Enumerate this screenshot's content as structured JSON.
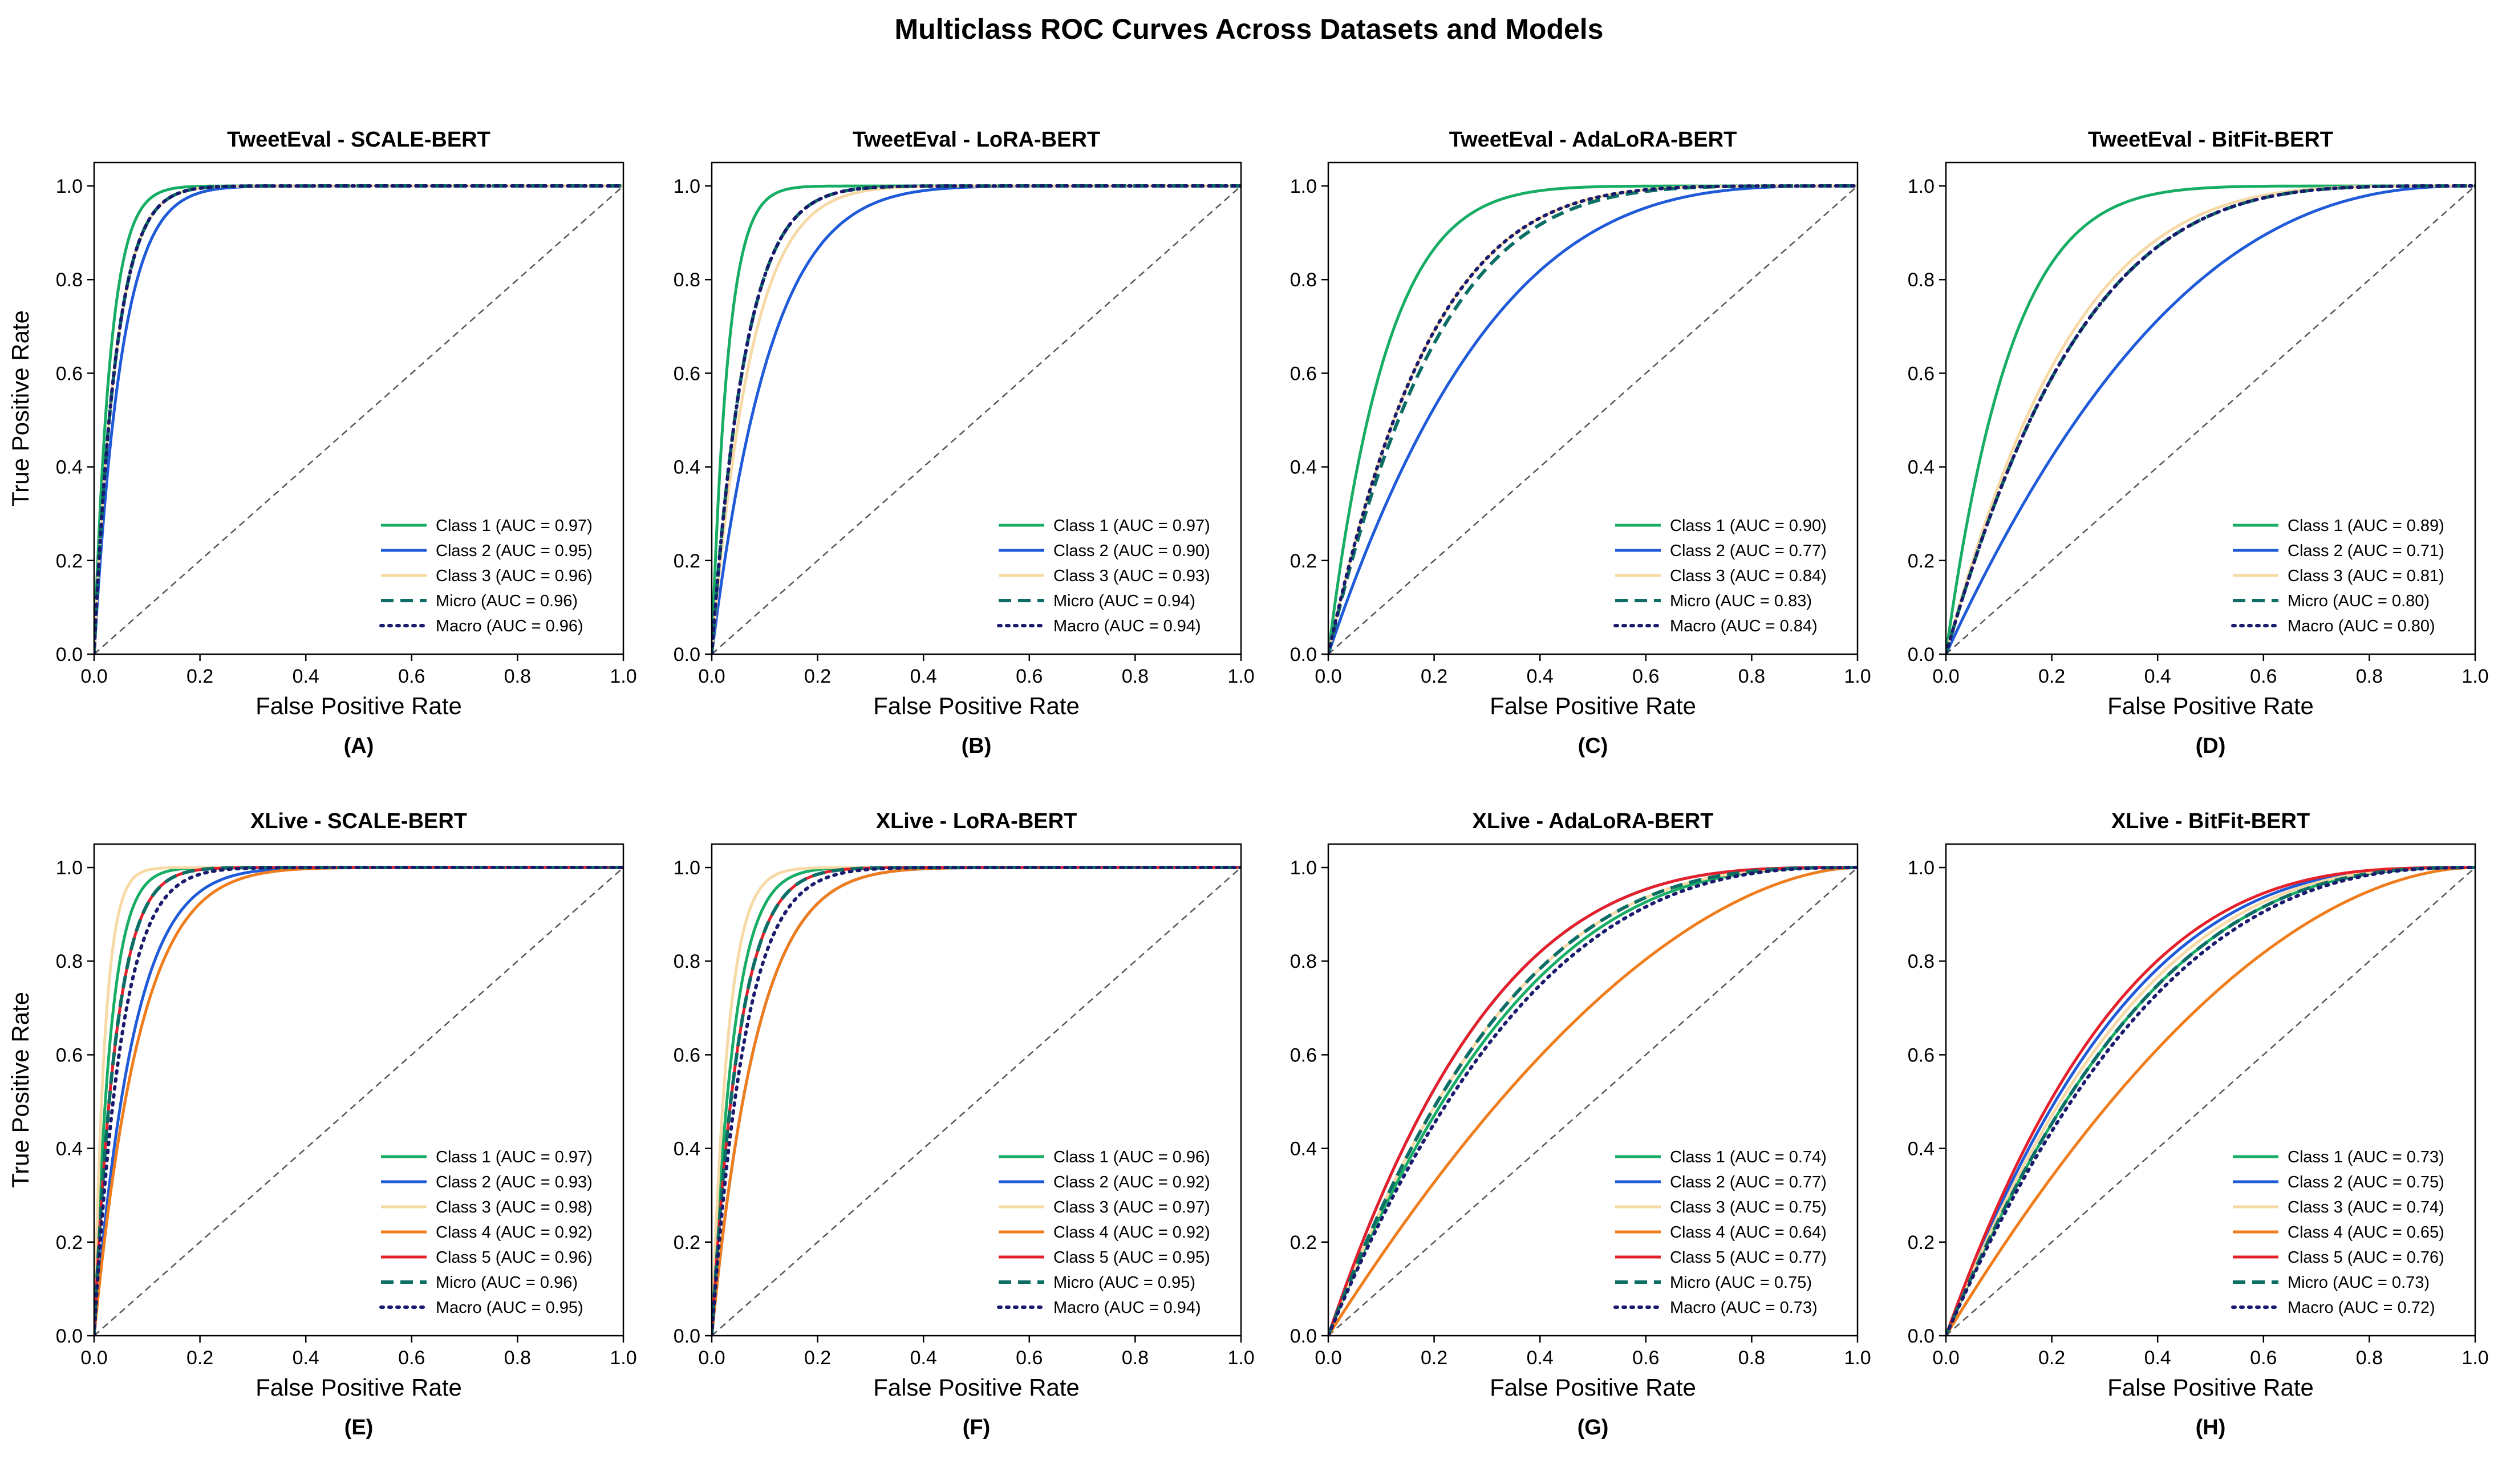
{
  "figure": {
    "title": "Multiclass ROC Curves Across Datasets and Models"
  },
  "colors": {
    "Class 1": "#18ad64",
    "Class 2": "#1f5ad8",
    "Class 3": "#f7d9a6",
    "Class 4": "#f07d1c",
    "Class 5": "#e4202a",
    "Micro": "#0c6e64",
    "Macro": "#1a1a6e",
    "diagonal": "#555555"
  },
  "chart_data": [
    {
      "type": "line",
      "panel_label": "(A)",
      "title": "TweetEval - SCALE-BERT",
      "xlabel": "False Positive Rate",
      "ylabel": "True Positive Rate",
      "xlim": [
        0,
        1
      ],
      "ylim": [
        0,
        1.05
      ],
      "xticks": [
        "0.0",
        "0.2",
        "0.4",
        "0.6",
        "0.8",
        "1.0"
      ],
      "yticks": [
        "0.0",
        "0.2",
        "0.4",
        "0.6",
        "0.8",
        "1.0"
      ],
      "legend_position": "lower-right",
      "grid": false,
      "series": [
        {
          "name": "Class 1",
          "legend": "Class 1 (AUC = 0.97)",
          "auc": 0.97,
          "style": "solid"
        },
        {
          "name": "Class 2",
          "legend": "Class 2 (AUC = 0.95)",
          "auc": 0.95,
          "style": "solid"
        },
        {
          "name": "Class 3",
          "legend": "Class 3 (AUC = 0.96)",
          "auc": 0.96,
          "style": "solid"
        },
        {
          "name": "Micro",
          "legend": "Micro (AUC = 0.96)",
          "auc": 0.96,
          "style": "dashed"
        },
        {
          "name": "Macro",
          "legend": "Macro (AUC = 0.96)",
          "auc": 0.96,
          "style": "dotted"
        }
      ]
    },
    {
      "type": "line",
      "panel_label": "(B)",
      "title": "TweetEval - LoRA-BERT",
      "xlabel": "False Positive Rate",
      "ylabel": "",
      "xlim": [
        0,
        1
      ],
      "ylim": [
        0,
        1.05
      ],
      "xticks": [
        "0.0",
        "0.2",
        "0.4",
        "0.6",
        "0.8",
        "1.0"
      ],
      "yticks": [
        "0.0",
        "0.2",
        "0.4",
        "0.6",
        "0.8",
        "1.0"
      ],
      "legend_position": "lower-right",
      "grid": false,
      "series": [
        {
          "name": "Class 1",
          "legend": "Class 1 (AUC = 0.97)",
          "auc": 0.97,
          "style": "solid"
        },
        {
          "name": "Class 2",
          "legend": "Class 2 (AUC = 0.90)",
          "auc": 0.9,
          "style": "solid"
        },
        {
          "name": "Class 3",
          "legend": "Class 3 (AUC = 0.93)",
          "auc": 0.93,
          "style": "solid"
        },
        {
          "name": "Micro",
          "legend": "Micro (AUC = 0.94)",
          "auc": 0.94,
          "style": "dashed"
        },
        {
          "name": "Macro",
          "legend": "Macro (AUC = 0.94)",
          "auc": 0.94,
          "style": "dotted"
        }
      ]
    },
    {
      "type": "line",
      "panel_label": "(C)",
      "title": "TweetEval - AdaLoRA-BERT",
      "xlabel": "False Positive Rate",
      "ylabel": "",
      "xlim": [
        0,
        1
      ],
      "ylim": [
        0,
        1.05
      ],
      "xticks": [
        "0.0",
        "0.2",
        "0.4",
        "0.6",
        "0.8",
        "1.0"
      ],
      "yticks": [
        "0.0",
        "0.2",
        "0.4",
        "0.6",
        "0.8",
        "1.0"
      ],
      "legend_position": "lower-right",
      "grid": false,
      "series": [
        {
          "name": "Class 1",
          "legend": "Class 1 (AUC = 0.90)",
          "auc": 0.9,
          "style": "solid"
        },
        {
          "name": "Class 2",
          "legend": "Class 2 (AUC = 0.77)",
          "auc": 0.77,
          "style": "solid"
        },
        {
          "name": "Class 3",
          "legend": "Class 3 (AUC = 0.84)",
          "auc": 0.84,
          "style": "solid"
        },
        {
          "name": "Micro",
          "legend": "Micro (AUC = 0.83)",
          "auc": 0.83,
          "style": "dashed"
        },
        {
          "name": "Macro",
          "legend": "Macro (AUC = 0.84)",
          "auc": 0.84,
          "style": "dotted"
        }
      ]
    },
    {
      "type": "line",
      "panel_label": "(D)",
      "title": "TweetEval - BitFit-BERT",
      "xlabel": "False Positive Rate",
      "ylabel": "",
      "xlim": [
        0,
        1
      ],
      "ylim": [
        0,
        1.05
      ],
      "xticks": [
        "0.0",
        "0.2",
        "0.4",
        "0.6",
        "0.8",
        "1.0"
      ],
      "yticks": [
        "0.0",
        "0.2",
        "0.4",
        "0.6",
        "0.8",
        "1.0"
      ],
      "legend_position": "lower-right",
      "grid": false,
      "series": [
        {
          "name": "Class 1",
          "legend": "Class 1 (AUC = 0.89)",
          "auc": 0.89,
          "style": "solid"
        },
        {
          "name": "Class 2",
          "legend": "Class 2 (AUC = 0.71)",
          "auc": 0.71,
          "style": "solid"
        },
        {
          "name": "Class 3",
          "legend": "Class 3 (AUC = 0.81)",
          "auc": 0.81,
          "style": "solid"
        },
        {
          "name": "Micro",
          "legend": "Micro (AUC = 0.80)",
          "auc": 0.8,
          "style": "dashed"
        },
        {
          "name": "Macro",
          "legend": "Macro (AUC = 0.80)",
          "auc": 0.8,
          "style": "dotted"
        }
      ]
    },
    {
      "type": "line",
      "panel_label": "(E)",
      "title": "XLive - SCALE-BERT",
      "xlabel": "False Positive Rate",
      "ylabel": "True Positive Rate",
      "xlim": [
        0,
        1
      ],
      "ylim": [
        0,
        1.05
      ],
      "xticks": [
        "0.0",
        "0.2",
        "0.4",
        "0.6",
        "0.8",
        "1.0"
      ],
      "yticks": [
        "0.0",
        "0.2",
        "0.4",
        "0.6",
        "0.8",
        "1.0"
      ],
      "legend_position": "lower-right",
      "grid": false,
      "series": [
        {
          "name": "Class 1",
          "legend": "Class 1 (AUC = 0.97)",
          "auc": 0.97,
          "style": "solid"
        },
        {
          "name": "Class 2",
          "legend": "Class 2 (AUC = 0.93)",
          "auc": 0.93,
          "style": "solid"
        },
        {
          "name": "Class 3",
          "legend": "Class 3 (AUC = 0.98)",
          "auc": 0.98,
          "style": "solid"
        },
        {
          "name": "Class 4",
          "legend": "Class 4 (AUC = 0.92)",
          "auc": 0.92,
          "style": "solid"
        },
        {
          "name": "Class 5",
          "legend": "Class 5 (AUC = 0.96)",
          "auc": 0.96,
          "style": "solid"
        },
        {
          "name": "Micro",
          "legend": "Micro (AUC = 0.96)",
          "auc": 0.96,
          "style": "dashed"
        },
        {
          "name": "Macro",
          "legend": "Macro (AUC = 0.95)",
          "auc": 0.95,
          "style": "dotted"
        }
      ]
    },
    {
      "type": "line",
      "panel_label": "(F)",
      "title": "XLive - LoRA-BERT",
      "xlabel": "False Positive Rate",
      "ylabel": "",
      "xlim": [
        0,
        1
      ],
      "ylim": [
        0,
        1.05
      ],
      "xticks": [
        "0.0",
        "0.2",
        "0.4",
        "0.6",
        "0.8",
        "1.0"
      ],
      "yticks": [
        "0.0",
        "0.2",
        "0.4",
        "0.6",
        "0.8",
        "1.0"
      ],
      "legend_position": "lower-right",
      "grid": false,
      "series": [
        {
          "name": "Class 1",
          "legend": "Class 1 (AUC = 0.96)",
          "auc": 0.96,
          "style": "solid"
        },
        {
          "name": "Class 2",
          "legend": "Class 2 (AUC = 0.92)",
          "auc": 0.92,
          "style": "solid"
        },
        {
          "name": "Class 3",
          "legend": "Class 3 (AUC = 0.97)",
          "auc": 0.97,
          "style": "solid"
        },
        {
          "name": "Class 4",
          "legend": "Class 4 (AUC = 0.92)",
          "auc": 0.92,
          "style": "solid"
        },
        {
          "name": "Class 5",
          "legend": "Class 5 (AUC = 0.95)",
          "auc": 0.95,
          "style": "solid"
        },
        {
          "name": "Micro",
          "legend": "Micro (AUC = 0.95)",
          "auc": 0.95,
          "style": "dashed"
        },
        {
          "name": "Macro",
          "legend": "Macro (AUC = 0.94)",
          "auc": 0.94,
          "style": "dotted"
        }
      ]
    },
    {
      "type": "line",
      "panel_label": "(G)",
      "title": "XLive - AdaLoRA-BERT",
      "xlabel": "False Positive Rate",
      "ylabel": "",
      "xlim": [
        0,
        1
      ],
      "ylim": [
        0,
        1.05
      ],
      "xticks": [
        "0.0",
        "0.2",
        "0.4",
        "0.6",
        "0.8",
        "1.0"
      ],
      "yticks": [
        "0.0",
        "0.2",
        "0.4",
        "0.6",
        "0.8",
        "1.0"
      ],
      "legend_position": "lower-right",
      "grid": false,
      "series": [
        {
          "name": "Class 1",
          "legend": "Class 1 (AUC = 0.74)",
          "auc": 0.74,
          "style": "solid"
        },
        {
          "name": "Class 2",
          "legend": "Class 2 (AUC = 0.77)",
          "auc": 0.77,
          "style": "solid"
        },
        {
          "name": "Class 3",
          "legend": "Class 3 (AUC = 0.75)",
          "auc": 0.75,
          "style": "solid"
        },
        {
          "name": "Class 4",
          "legend": "Class 4 (AUC = 0.64)",
          "auc": 0.64,
          "style": "solid"
        },
        {
          "name": "Class 5",
          "legend": "Class 5 (AUC = 0.77)",
          "auc": 0.77,
          "style": "solid"
        },
        {
          "name": "Micro",
          "legend": "Micro (AUC = 0.75)",
          "auc": 0.75,
          "style": "dashed"
        },
        {
          "name": "Macro",
          "legend": "Macro (AUC = 0.73)",
          "auc": 0.73,
          "style": "dotted"
        }
      ]
    },
    {
      "type": "line",
      "panel_label": "(H)",
      "title": "XLive - BitFit-BERT",
      "xlabel": "False Positive Rate",
      "ylabel": "",
      "xlim": [
        0,
        1
      ],
      "ylim": [
        0,
        1.05
      ],
      "xticks": [
        "0.0",
        "0.2",
        "0.4",
        "0.6",
        "0.8",
        "1.0"
      ],
      "yticks": [
        "0.0",
        "0.2",
        "0.4",
        "0.6",
        "0.8",
        "1.0"
      ],
      "legend_position": "lower-right",
      "grid": false,
      "series": [
        {
          "name": "Class 1",
          "legend": "Class 1 (AUC = 0.73)",
          "auc": 0.73,
          "style": "solid"
        },
        {
          "name": "Class 2",
          "legend": "Class 2 (AUC = 0.75)",
          "auc": 0.75,
          "style": "solid"
        },
        {
          "name": "Class 3",
          "legend": "Class 3 (AUC = 0.74)",
          "auc": 0.74,
          "style": "solid"
        },
        {
          "name": "Class 4",
          "legend": "Class 4 (AUC = 0.65)",
          "auc": 0.65,
          "style": "solid"
        },
        {
          "name": "Class 5",
          "legend": "Class 5 (AUC = 0.76)",
          "auc": 0.76,
          "style": "solid"
        },
        {
          "name": "Micro",
          "legend": "Micro (AUC = 0.73)",
          "auc": 0.73,
          "style": "dashed"
        },
        {
          "name": "Macro",
          "legend": "Macro (AUC = 0.72)",
          "auc": 0.72,
          "style": "dotted"
        }
      ]
    }
  ]
}
